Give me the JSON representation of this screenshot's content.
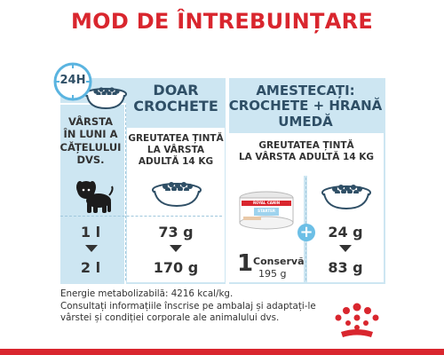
{
  "title": "MOD DE ÎNTREBUINȚARE",
  "clock": {
    "label": "24H"
  },
  "left_panel": {
    "header": "DOAR\nCROCHETE",
    "age_label": "VÂRSTA\nÎN LUNI A\nCĂȚELULUI\nDVS.",
    "target_weight": "GREUTATEA ȚINTĂ\nLA VÂRSTA\nADULTĂ 14 KG",
    "rows": [
      {
        "age": "1 l",
        "amount": "73 g"
      },
      {
        "age": "2 l",
        "amount": "170 g"
      }
    ]
  },
  "right_panel": {
    "header": "AMESTECAȚI:\nCROCHETE + HRANĂ\nUMEDĂ",
    "target_weight": "GREUTATEA ȚINTĂ\nLA VÂRSTA ADULTĂ 14 KG",
    "can_number": "1",
    "can_label": "Conservă",
    "can_weight": "195 g",
    "plus": "+",
    "dry_rows": [
      "24 g",
      "83 g"
    ],
    "can_brand": "ROYAL CANIN",
    "can_product": "STARTER"
  },
  "footer": {
    "line1": "Energie metabolizabilă: 4216 kcal/kg.",
    "line2": "Consultați informațiile înscrise pe ambalaj și adaptați-le",
    "line3": "vârstei și condiției corporale ale animalului dvs."
  },
  "colors": {
    "accent": "#d9262e",
    "panel": "#cde6f2",
    "plus": "#6cbfe6"
  }
}
